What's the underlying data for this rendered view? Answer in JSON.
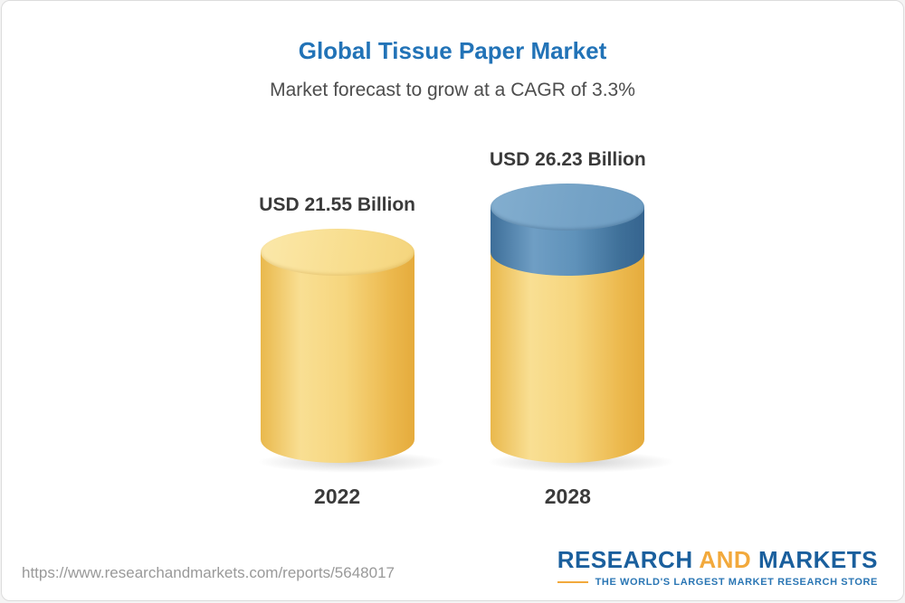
{
  "chart_data": {
    "type": "bar",
    "title": "Global Tissue Paper Market",
    "subtitle": "Market forecast to grow at a CAGR of 3.3%",
    "categories": [
      "2022",
      "2028"
    ],
    "values": [
      21.55,
      26.23
    ],
    "value_labels": [
      "USD 21.55 Billion",
      "USD 26.23 Billion"
    ],
    "unit": "USD Billion",
    "cagr": "3.3%",
    "grid": false,
    "legend_position": "none",
    "colors": {
      "title": "#2273b7",
      "bar_base": "#f6d57d",
      "bar_growth": "#5f92ba"
    }
  },
  "footer": {
    "url": "https://www.researchandmarkets.com/reports/5648017",
    "logo_research": "RESEARCH ",
    "logo_and": "AND",
    "logo_markets": " MARKETS",
    "tagline": "THE WORLD'S LARGEST MARKET RESEARCH STORE"
  }
}
